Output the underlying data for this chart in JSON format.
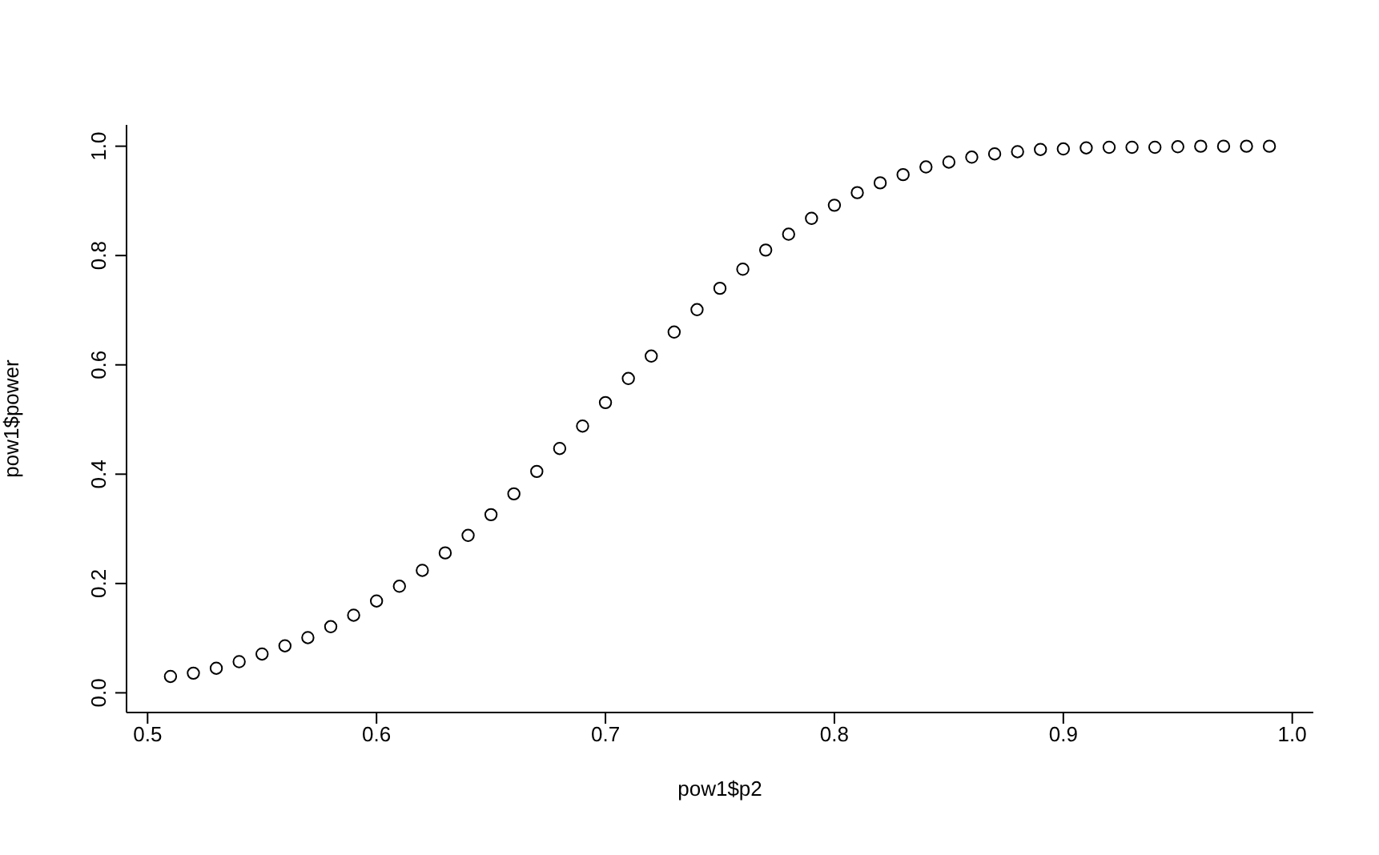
{
  "chart_data": {
    "type": "scatter",
    "xlabel": "pow1$p2",
    "ylabel": "pow1$power",
    "x": [
      0.51,
      0.52,
      0.53,
      0.54,
      0.55,
      0.56,
      0.57,
      0.58,
      0.59,
      0.6,
      0.61,
      0.62,
      0.63,
      0.64,
      0.65,
      0.66,
      0.67,
      0.68,
      0.69,
      0.7,
      0.71,
      0.72,
      0.73,
      0.74,
      0.75,
      0.76,
      0.77,
      0.78,
      0.79,
      0.8,
      0.81,
      0.82,
      0.83,
      0.84,
      0.85,
      0.86,
      0.87,
      0.88,
      0.89,
      0.9,
      0.91,
      0.92,
      0.93,
      0.94,
      0.95,
      0.96,
      0.97,
      0.98,
      0.99
    ],
    "series": [
      {
        "color": "#000000",
        "values": [
          0.03,
          0.036,
          0.045,
          0.057,
          0.071,
          0.086,
          0.101,
          0.121,
          0.142,
          0.168,
          0.195,
          0.224,
          0.256,
          0.288,
          0.326,
          0.364,
          0.405,
          0.447,
          0.488,
          0.531,
          0.575,
          0.616,
          0.66,
          0.701,
          0.74,
          0.775,
          0.81,
          0.839,
          0.868,
          0.892,
          0.915,
          0.933,
          0.948,
          0.962,
          0.971,
          0.98,
          0.986,
          0.99,
          0.994,
          0.995,
          0.997,
          0.998,
          0.998,
          0.998,
          0.999,
          1.0,
          1.0,
          1.0,
          1.0
        ]
      }
    ],
    "xlim": [
      0.4908,
      1.0092
    ],
    "xticks": [
      {
        "value": 0.5,
        "label": "0.5"
      },
      {
        "value": 0.6,
        "label": "0.6"
      },
      {
        "value": 0.7,
        "label": "0.7"
      },
      {
        "value": 0.8,
        "label": "0.8"
      },
      {
        "value": 0.9,
        "label": "0.9"
      },
      {
        "value": 1.0,
        "label": "1.0"
      }
    ],
    "ylim": [
      -0.036,
      1.039
    ],
    "yticks": [
      {
        "value": 0,
        "label": "0.0"
      },
      {
        "value": 0.2,
        "label": "0.2"
      },
      {
        "value": 0.4,
        "label": "0.4"
      },
      {
        "value": 0.6,
        "label": "0.6"
      },
      {
        "value": 0.8,
        "label": "0.8"
      },
      {
        "value": 1.0,
        "label": "1.0"
      }
    ],
    "grid": false,
    "legend": false,
    "marker": "circle"
  }
}
